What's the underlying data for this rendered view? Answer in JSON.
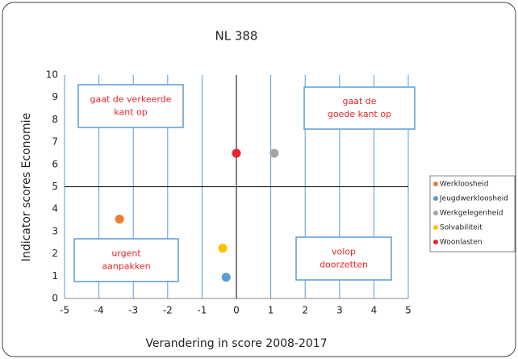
{
  "chart_data": {
    "type": "scatter",
    "title": "NL 388",
    "x_label": "Verandering in score 2008-2017",
    "y_label": "Indicator scores Economie",
    "xlim": [
      -5,
      5
    ],
    "xticks": [
      -5,
      -4,
      -3,
      -2,
      -1,
      0,
      1,
      2,
      3,
      4,
      5
    ],
    "ylim": [
      0,
      10
    ],
    "yticks": [
      0,
      1,
      2,
      3,
      4,
      5,
      6,
      7,
      8,
      9,
      10
    ],
    "grid": "x",
    "reference_lines": {
      "x": 0,
      "y": 5
    },
    "legend": "right",
    "series": [
      {
        "name": "Werkloosheid",
        "color": "#ed7d31",
        "x": [
          -3.4
        ],
        "values": [
          3.55
        ]
      },
      {
        "name": "Jeugdwerkloosheid",
        "color": "#5b9bd5",
        "x": [
          -0.3
        ],
        "values": [
          0.95
        ]
      },
      {
        "name": "Werkgelegenheid",
        "color": "#a5a5a5",
        "x": [
          1.1
        ],
        "values": [
          6.5
        ]
      },
      {
        "name": "Solvabiliteit",
        "color": "#ffc000",
        "x": [
          -0.4
        ],
        "values": [
          2.25
        ]
      },
      {
        "name": "Woonlasten",
        "color": "#e8262b",
        "x": [
          0
        ],
        "values": [
          6.5
        ]
      }
    ],
    "annotations": [
      {
        "lines": [
          "gaat de verkeerde",
          "kant op"
        ]
      },
      {
        "lines": [
          "gaat de",
          "goede kant op"
        ]
      },
      {
        "lines": [
          "urgent",
          "aanpakken"
        ]
      },
      {
        "lines": [
          "volop",
          "doorzetten"
        ]
      }
    ]
  }
}
